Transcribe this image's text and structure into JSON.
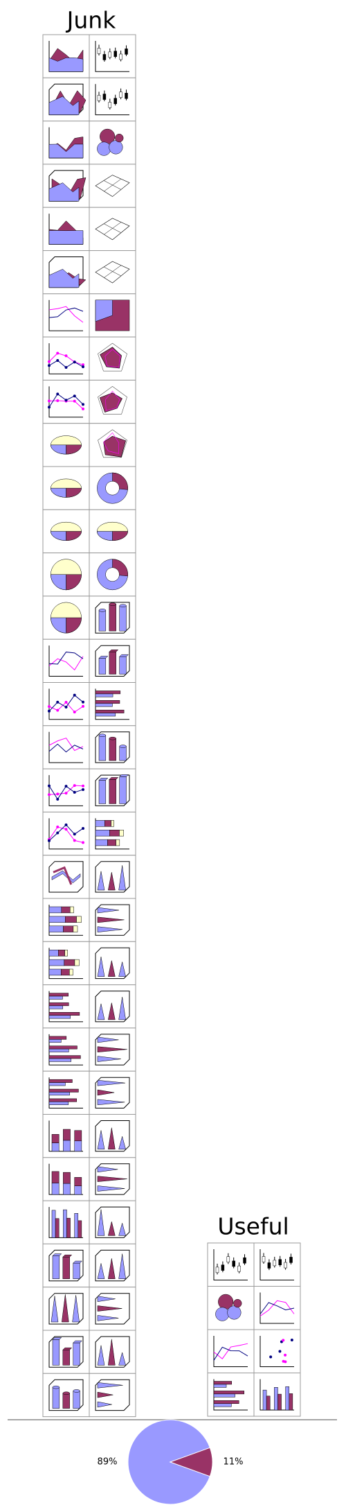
{
  "headings": {
    "junk": "Junk",
    "useful": "Useful"
  },
  "chart_data": {
    "type": "pie",
    "values": [
      89,
      11
    ],
    "value_labels": [
      "89%",
      "11%"
    ],
    "colors": [
      "#9999ff",
      "#993366"
    ]
  }
}
